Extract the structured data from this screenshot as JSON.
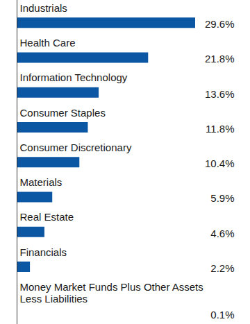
{
  "chart_data": {
    "type": "bar",
    "orientation": "horizontal",
    "categories": [
      "Industrials",
      "Health Care",
      "Information Technology",
      "Consumer Staples",
      "Consumer Discretionary",
      "Materials",
      "Real Estate",
      "Financials",
      "Money Market Funds Plus Other Assets Less Liabilities"
    ],
    "values": [
      29.6,
      21.8,
      13.6,
      11.8,
      10.4,
      5.9,
      4.6,
      2.2,
      0.1
    ],
    "value_labels": [
      "29.6%",
      "21.8%",
      "13.6%",
      "11.8%",
      "10.4%",
      "5.9%",
      "4.6%",
      "2.2%",
      "0.1%"
    ],
    "data_labels": true,
    "tick_labels": false,
    "color": "#0b57a4"
  }
}
